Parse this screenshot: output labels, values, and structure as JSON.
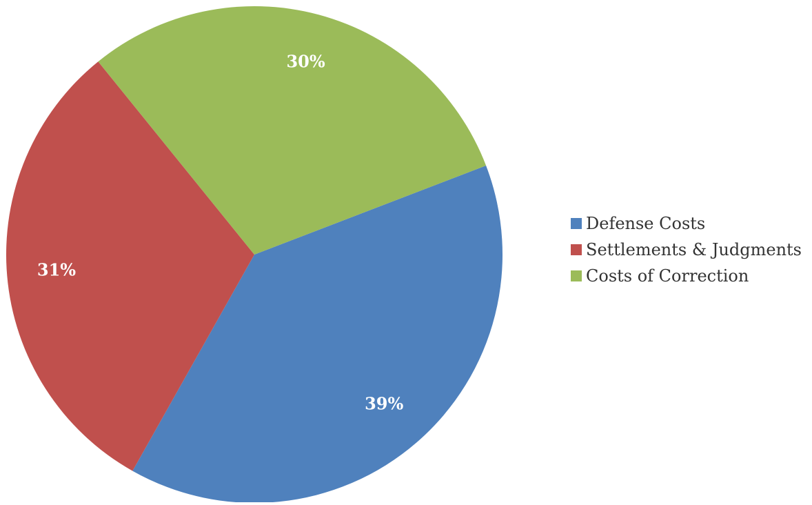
{
  "chart_data": {
    "type": "pie",
    "title": "",
    "legend_position": "right",
    "slices": [
      {
        "name": "Defense Costs",
        "value": 39,
        "label": "39%",
        "color": "#4F81BD"
      },
      {
        "name": "Settlements & Judgments",
        "value": 31,
        "label": "31%",
        "color": "#C0504D"
      },
      {
        "name": "Costs of Correction",
        "value": 30,
        "label": "30%",
        "color": "#9BBB59"
      }
    ]
  }
}
